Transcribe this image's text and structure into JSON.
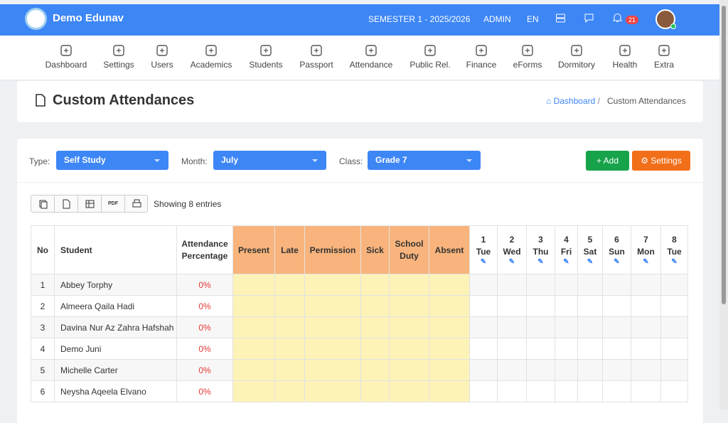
{
  "header": {
    "brand": "Demo Edunav",
    "semester": "SEMESTER 1 - 2025/2026",
    "role": "ADMIN",
    "lang": "EN",
    "notifications": 21
  },
  "nav": [
    "Dashboard",
    "Settings",
    "Users",
    "Academics",
    "Students",
    "Passport",
    "Attendance",
    "Public Rel.",
    "Finance",
    "eForms",
    "Dormitory",
    "Health",
    "Extra"
  ],
  "page": {
    "title": "Custom Attendances",
    "breadcrumb": [
      "Dashboard",
      "Custom Attendances"
    ]
  },
  "filters": [
    {
      "label": "Type:",
      "value": "Self Study"
    },
    {
      "label": "Month:",
      "value": "July"
    },
    {
      "label": "Class:",
      "value": "Grade 7"
    }
  ],
  "buttons": {
    "add": "Add",
    "settings": "Settings"
  },
  "toolbar": {
    "pdf": "PDF",
    "info": "Showing 8 entries"
  },
  "table": {
    "columns": [
      "No",
      "Student",
      "Attendance Percentage",
      "Present",
      "Late",
      "Permission",
      "Sick",
      "School Duty",
      "Absent"
    ],
    "days": [
      {
        "day": "1",
        "weekday": "Tue"
      },
      {
        "day": "2",
        "weekday": "Wed"
      },
      {
        "day": "3",
        "weekday": "Thu"
      },
      {
        "day": "4",
        "weekday": "Fri"
      },
      {
        "day": "5",
        "weekday": "Sat"
      },
      {
        "day": "6",
        "weekday": "Sun"
      },
      {
        "day": "7",
        "weekday": "Mon"
      },
      {
        "day": "8",
        "weekday": "Tue"
      }
    ],
    "rows": [
      [
        "1",
        "Abbey Torphy",
        "0%"
      ],
      [
        "2",
        "Almeera Qaila Hadi",
        "0%"
      ],
      [
        "3",
        "Davina Nur Az Zahra Hafshah",
        "0%"
      ],
      [
        "4",
        "Demo Juni",
        "0%"
      ],
      [
        "5",
        "Michelle Carter",
        "0%"
      ],
      [
        "6",
        "Neysha Aqeela Elvano",
        "0%"
      ]
    ]
  }
}
